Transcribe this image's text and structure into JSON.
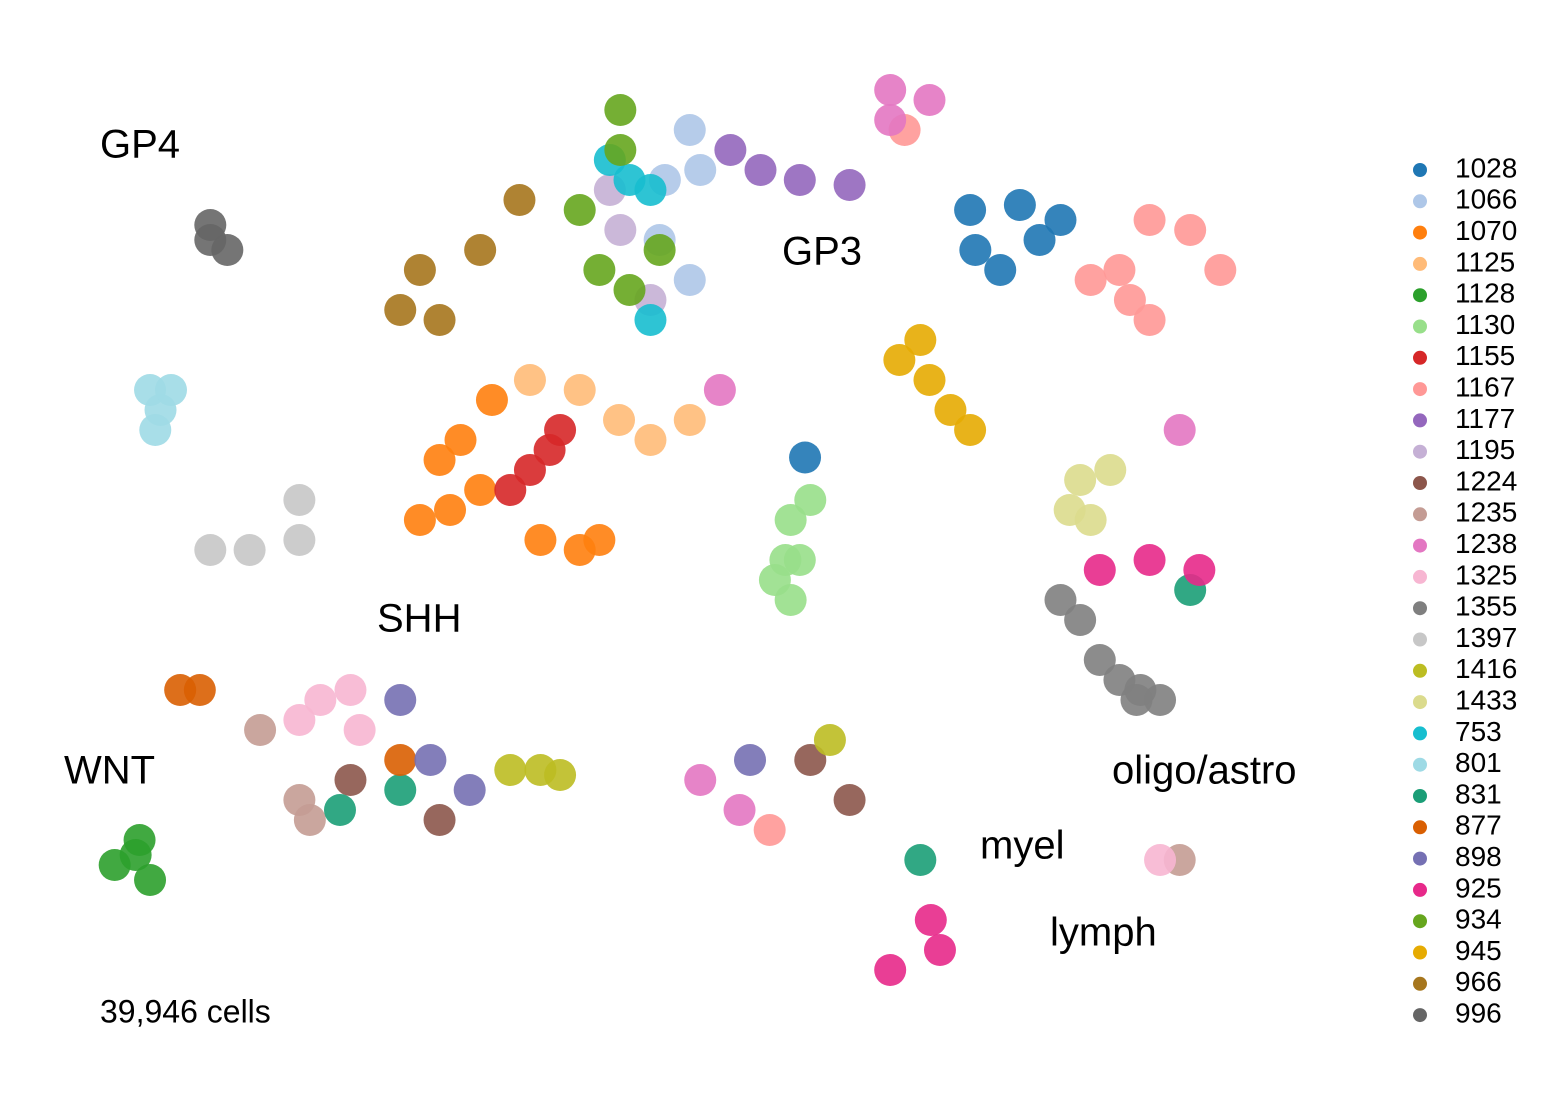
{
  "chart_data": {
    "type": "scatter",
    "xlim": [
      0,
      100
    ],
    "ylim": [
      0,
      80
    ],
    "annotations": [
      "GP4",
      "GP3",
      "SHH",
      "WNT",
      "oligo/astro",
      "myel",
      "lymph"
    ],
    "caption": "39,946 cells",
    "series": [
      {
        "name": "1028",
        "color": "#1f77b4",
        "x": [
          71.0,
          74.8,
          77.9,
          71.4,
          73.3,
          76.3,
          58.4
        ],
        "values": [
          68.0,
          68.4,
          67.2,
          64.8,
          63.2,
          65.6,
          48.2
        ]
      },
      {
        "name": "1066",
        "color": "#aec7e8",
        "x": [
          49.6,
          50.4,
          47.7,
          47.3,
          49.6
        ],
        "values": [
          74.4,
          71.2,
          70.4,
          65.6,
          62.4
        ]
      },
      {
        "name": "1070",
        "color": "#ff7f0e",
        "x": [
          29.0,
          31.3,
          32.1,
          34.5,
          38.2,
          41.2,
          42.7,
          33.6,
          30.5
        ],
        "values": [
          43.2,
          44.0,
          49.6,
          52.8,
          41.6,
          40.8,
          41.6,
          45.6,
          48.0
        ]
      },
      {
        "name": "1125",
        "color": "#ffbb78",
        "x": [
          37.4,
          41.2,
          44.2,
          46.6,
          49.6
        ],
        "values": [
          54.4,
          53.6,
          51.2,
          49.6,
          51.2
        ]
      },
      {
        "name": "1128",
        "color": "#2ca02c",
        "x": [
          7.3,
          5.7,
          8.4,
          7.6
        ],
        "values": [
          16.4,
          15.6,
          14.4,
          17.6
        ]
      },
      {
        "name": "1130",
        "color": "#98df8a",
        "x": [
          57.3,
          58.0,
          57.3,
          56.9,
          58.8,
          56.1
        ],
        "values": [
          43.2,
          40.0,
          36.8,
          40.0,
          44.8,
          38.4
        ]
      },
      {
        "name": "1155",
        "color": "#d62728",
        "x": [
          38.9,
          39.7,
          37.4,
          35.9
        ],
        "values": [
          48.8,
          50.4,
          47.2,
          45.6
        ]
      },
      {
        "name": "1167",
        "color": "#ff9896",
        "x": [
          84.7,
          87.8,
          83.2,
          82.4,
          90.1,
          84.7,
          80.2,
          55.7,
          66.0
        ],
        "values": [
          67.2,
          66.4,
          60.8,
          63.2,
          63.2,
          59.2,
          62.4,
          18.4,
          74.4
        ]
      },
      {
        "name": "1177",
        "color": "#9467bd",
        "x": [
          52.7,
          55.0,
          58.0,
          61.8
        ],
        "values": [
          72.8,
          71.2,
          70.4,
          70.0
        ]
      },
      {
        "name": "1195",
        "color": "#c5b0d5",
        "x": [
          43.5,
          44.3,
          46.6
        ],
        "values": [
          69.6,
          66.4,
          60.8
        ]
      },
      {
        "name": "1224",
        "color": "#8c564b",
        "x": [
          61.8,
          30.5,
          23.7,
          58.8
        ],
        "values": [
          20.8,
          19.2,
          22.4,
          24.0
        ]
      },
      {
        "name": "1235",
        "color": "#c49c94",
        "x": [
          19.8,
          16.8,
          20.6,
          87.0
        ],
        "values": [
          20.8,
          26.4,
          19.2,
          16.0
        ]
      },
      {
        "name": "1238",
        "color": "#e377c2",
        "x": [
          64.9,
          67.9,
          64.9,
          53.4,
          50.4,
          87.0,
          51.9
        ],
        "values": [
          77.6,
          76.8,
          75.2,
          20.0,
          22.4,
          50.4,
          53.6
        ]
      },
      {
        "name": "1325",
        "color": "#f7b6d2",
        "x": [
          21.4,
          23.7,
          19.8,
          24.4,
          85.5
        ],
        "values": [
          28.8,
          29.6,
          27.2,
          26.4,
          16.0
        ]
      },
      {
        "name": "1355",
        "color": "#7f7f7f",
        "x": [
          80.9,
          82.4,
          84.0,
          79.4,
          85.5,
          83.7,
          77.9
        ],
        "values": [
          32.0,
          30.4,
          29.6,
          35.2,
          28.8,
          28.8,
          36.8
        ]
      },
      {
        "name": "1397",
        "color": "#c7c7c7",
        "x": [
          19.8,
          19.8,
          16.0,
          13.0
        ],
        "values": [
          44.8,
          41.6,
          40.8,
          40.8
        ]
      },
      {
        "name": "1416",
        "color": "#bcbd22",
        "x": [
          38.2,
          39.7,
          35.9,
          60.3
        ],
        "values": [
          23.2,
          22.8,
          23.2,
          25.6
        ]
      },
      {
        "name": "1433",
        "color": "#dbdb8d",
        "x": [
          79.4,
          81.7,
          80.2,
          78.6
        ],
        "values": [
          46.4,
          47.2,
          43.2,
          44.0
        ]
      },
      {
        "name": "753",
        "color": "#17becf",
        "x": [
          45.0,
          46.6,
          43.5,
          46.6
        ],
        "values": [
          70.4,
          69.6,
          72.0,
          59.2
        ]
      },
      {
        "name": "801",
        "color": "#9edae5",
        "x": [
          8.4,
          9.2,
          10.0,
          8.8
        ],
        "values": [
          53.6,
          52.0,
          53.6,
          50.4
        ]
      },
      {
        "name": "831",
        "color": "#1b9e77",
        "x": [
          22.9,
          27.5,
          67.2,
          87.8
        ],
        "values": [
          20.0,
          21.6,
          16.0,
          37.6
        ]
      },
      {
        "name": "877",
        "color": "#d95f02",
        "x": [
          12.2,
          10.7,
          27.5
        ],
        "values": [
          29.6,
          29.6,
          24.0
        ]
      },
      {
        "name": "898",
        "color": "#7570b3",
        "x": [
          27.5,
          29.8,
          32.8,
          54.2
        ],
        "values": [
          28.8,
          24.0,
          21.6,
          24.0
        ]
      },
      {
        "name": "925",
        "color": "#e7298a",
        "x": [
          88.5,
          84.7,
          80.9,
          68.0,
          64.9,
          68.7
        ],
        "values": [
          39.2,
          40.0,
          39.2,
          11.2,
          7.2,
          8.8
        ]
      },
      {
        "name": "934",
        "color": "#66a61e",
        "x": [
          44.3,
          44.3,
          42.7,
          45.0,
          41.2,
          47.3
        ],
        "values": [
          76.0,
          72.8,
          63.2,
          61.6,
          68.0,
          64.8
        ]
      },
      {
        "name": "945",
        "color": "#e6ab02",
        "x": [
          65.6,
          67.9,
          69.5,
          67.2,
          71.0
        ],
        "values": [
          56.0,
          54.4,
          52.0,
          57.6,
          50.4
        ]
      },
      {
        "name": "966",
        "color": "#a6761d",
        "x": [
          29.0,
          27.5,
          30.5,
          33.6,
          36.6
        ],
        "values": [
          63.2,
          60.0,
          59.2,
          64.8,
          68.8
        ]
      },
      {
        "name": "996",
        "color": "#666666",
        "x": [
          13.0,
          13.0,
          14.3
        ],
        "values": [
          66.8,
          65.6,
          64.8
        ]
      }
    ]
  }
}
